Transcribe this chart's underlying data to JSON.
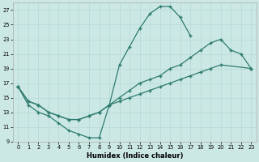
{
  "xlabel": "Humidex (Indice chaleur)",
  "xlim": [
    -0.5,
    23.5
  ],
  "ylim": [
    9,
    28
  ],
  "xticks": [
    0,
    1,
    2,
    3,
    4,
    5,
    6,
    7,
    8,
    9,
    10,
    11,
    12,
    13,
    14,
    15,
    16,
    17,
    18,
    19,
    20,
    21,
    22,
    23
  ],
  "yticks": [
    9,
    11,
    13,
    15,
    17,
    19,
    21,
    23,
    25,
    27
  ],
  "bg_color": "#cce8e4",
  "line_color": "#2d7b6f",
  "grid_color": "#b8dcd8",
  "curve1_x": [
    0,
    1,
    2,
    3,
    4,
    5,
    6,
    7,
    8,
    9,
    10,
    11,
    12,
    13,
    14,
    15,
    16,
    17
  ],
  "curve1_y": [
    16.5,
    14.0,
    13.0,
    12.5,
    11.5,
    10.5,
    10.0,
    9.5,
    9.5,
    14.0,
    19.5,
    22.0,
    24.5,
    26.5,
    27.5,
    27.5,
    26.0,
    23.5
  ],
  "curve2_x": [
    0,
    1,
    2,
    3,
    4,
    5,
    6,
    7,
    8,
    9,
    10,
    11,
    12,
    13,
    14,
    15,
    16,
    17,
    18,
    19,
    20,
    21,
    22,
    23
  ],
  "curve2_y": [
    16.5,
    14.5,
    14.0,
    13.0,
    12.5,
    12.0,
    12.0,
    12.5,
    13.0,
    14.0,
    15.0,
    16.0,
    17.0,
    17.5,
    18.0,
    19.0,
    19.5,
    20.5,
    21.5,
    22.5,
    23.0,
    21.5,
    21.0,
    19.0
  ],
  "curve3_x": [
    0,
    1,
    2,
    3,
    4,
    5,
    6,
    7,
    8,
    9,
    10,
    11,
    12,
    13,
    14,
    15,
    16,
    17,
    18,
    19,
    20,
    23
  ],
  "curve3_y": [
    16.5,
    14.5,
    14.0,
    13.0,
    12.5,
    12.0,
    12.0,
    12.5,
    13.0,
    14.0,
    14.5,
    15.0,
    15.5,
    16.0,
    16.5,
    17.0,
    17.5,
    18.0,
    18.5,
    19.0,
    19.5,
    19.0
  ]
}
